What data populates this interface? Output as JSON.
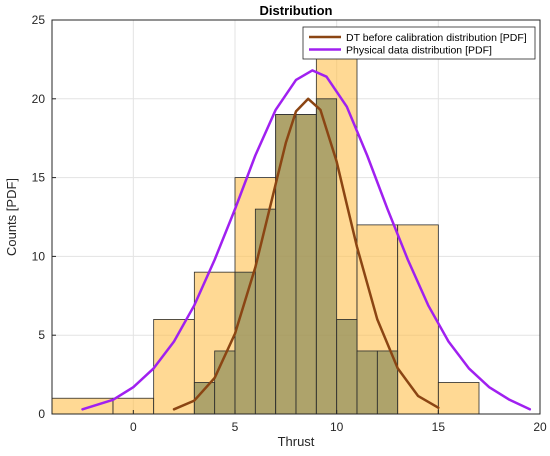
{
  "chart_data": {
    "type": "bar",
    "title": "Distribution",
    "xlabel": "Thrust",
    "ylabel": "Counts [PDF]",
    "xlim": [
      -4,
      20
    ],
    "ylim": [
      0,
      25
    ],
    "xticks": [
      0,
      5,
      10,
      15,
      20
    ],
    "yticks": [
      0,
      5,
      10,
      15,
      20,
      25
    ],
    "grid": true,
    "legend_position": "top-right",
    "histograms": [
      {
        "name": "",
        "color": "#FFC04D",
        "bins": [
          {
            "x0": -4,
            "x1": -1,
            "count": 1
          },
          {
            "x0": -1,
            "x1": 1,
            "count": 1
          },
          {
            "x0": 1,
            "x1": 3,
            "count": 6
          },
          {
            "x0": 3,
            "x1": 5,
            "count": 9
          },
          {
            "x0": 5,
            "x1": 7,
            "count": 15
          },
          {
            "x0": 7,
            "x1": 9,
            "count": 19
          },
          {
            "x0": 9,
            "x1": 11,
            "count": 23
          },
          {
            "x0": 11,
            "x1": 13,
            "count": 12
          },
          {
            "x0": 13,
            "x1": 15,
            "count": 12
          },
          {
            "x0": 15,
            "x1": 17,
            "count": 2
          }
        ]
      },
      {
        "name": "",
        "color": "#8C8C5A",
        "bins": [
          {
            "x0": 3,
            "x1": 4,
            "count": 2
          },
          {
            "x0": 4,
            "x1": 5,
            "count": 4
          },
          {
            "x0": 5,
            "x1": 6,
            "count": 9
          },
          {
            "x0": 6,
            "x1": 7,
            "count": 13
          },
          {
            "x0": 7,
            "x1": 8,
            "count": 19
          },
          {
            "x0": 8,
            "x1": 9,
            "count": 19
          },
          {
            "x0": 9,
            "x1": 10,
            "count": 20
          },
          {
            "x0": 10,
            "x1": 11,
            "count": 6
          },
          {
            "x0": 11,
            "x1": 12,
            "count": 4
          },
          {
            "x0": 12,
            "x1": 13,
            "count": 4
          }
        ]
      }
    ],
    "series": [
      {
        "name": "DT before calibration distribution [PDF]",
        "color": "#8B4513",
        "x": [
          2.0,
          3.0,
          4.0,
          5.0,
          6.0,
          7.0,
          7.5,
          8.0,
          8.6,
          9.2,
          10.0,
          10.5,
          11.0,
          12.0,
          13.0,
          14.0,
          15.0
        ],
        "y": [
          0.3,
          0.85,
          2.3,
          5.1,
          9.3,
          14.6,
          17.2,
          19.2,
          20.0,
          19.3,
          16.0,
          13.3,
          10.6,
          6.0,
          2.9,
          1.15,
          0.4
        ]
      },
      {
        "name": "Physical data distribution [PDF]",
        "color": "#A020F0",
        "x": [
          -2.5,
          -1.0,
          0.0,
          1.0,
          2.0,
          3.0,
          4.0,
          5.0,
          6.0,
          7.0,
          8.0,
          8.8,
          9.5,
          10.5,
          11.5,
          12.5,
          13.5,
          14.5,
          15.5,
          16.5,
          17.5,
          18.5,
          19.5
        ],
        "y": [
          0.3,
          0.9,
          1.7,
          2.9,
          4.6,
          6.9,
          9.8,
          13.0,
          16.4,
          19.3,
          21.2,
          21.8,
          21.4,
          19.5,
          16.4,
          13.0,
          9.8,
          6.9,
          4.6,
          2.9,
          1.7,
          0.9,
          0.3
        ]
      }
    ]
  }
}
